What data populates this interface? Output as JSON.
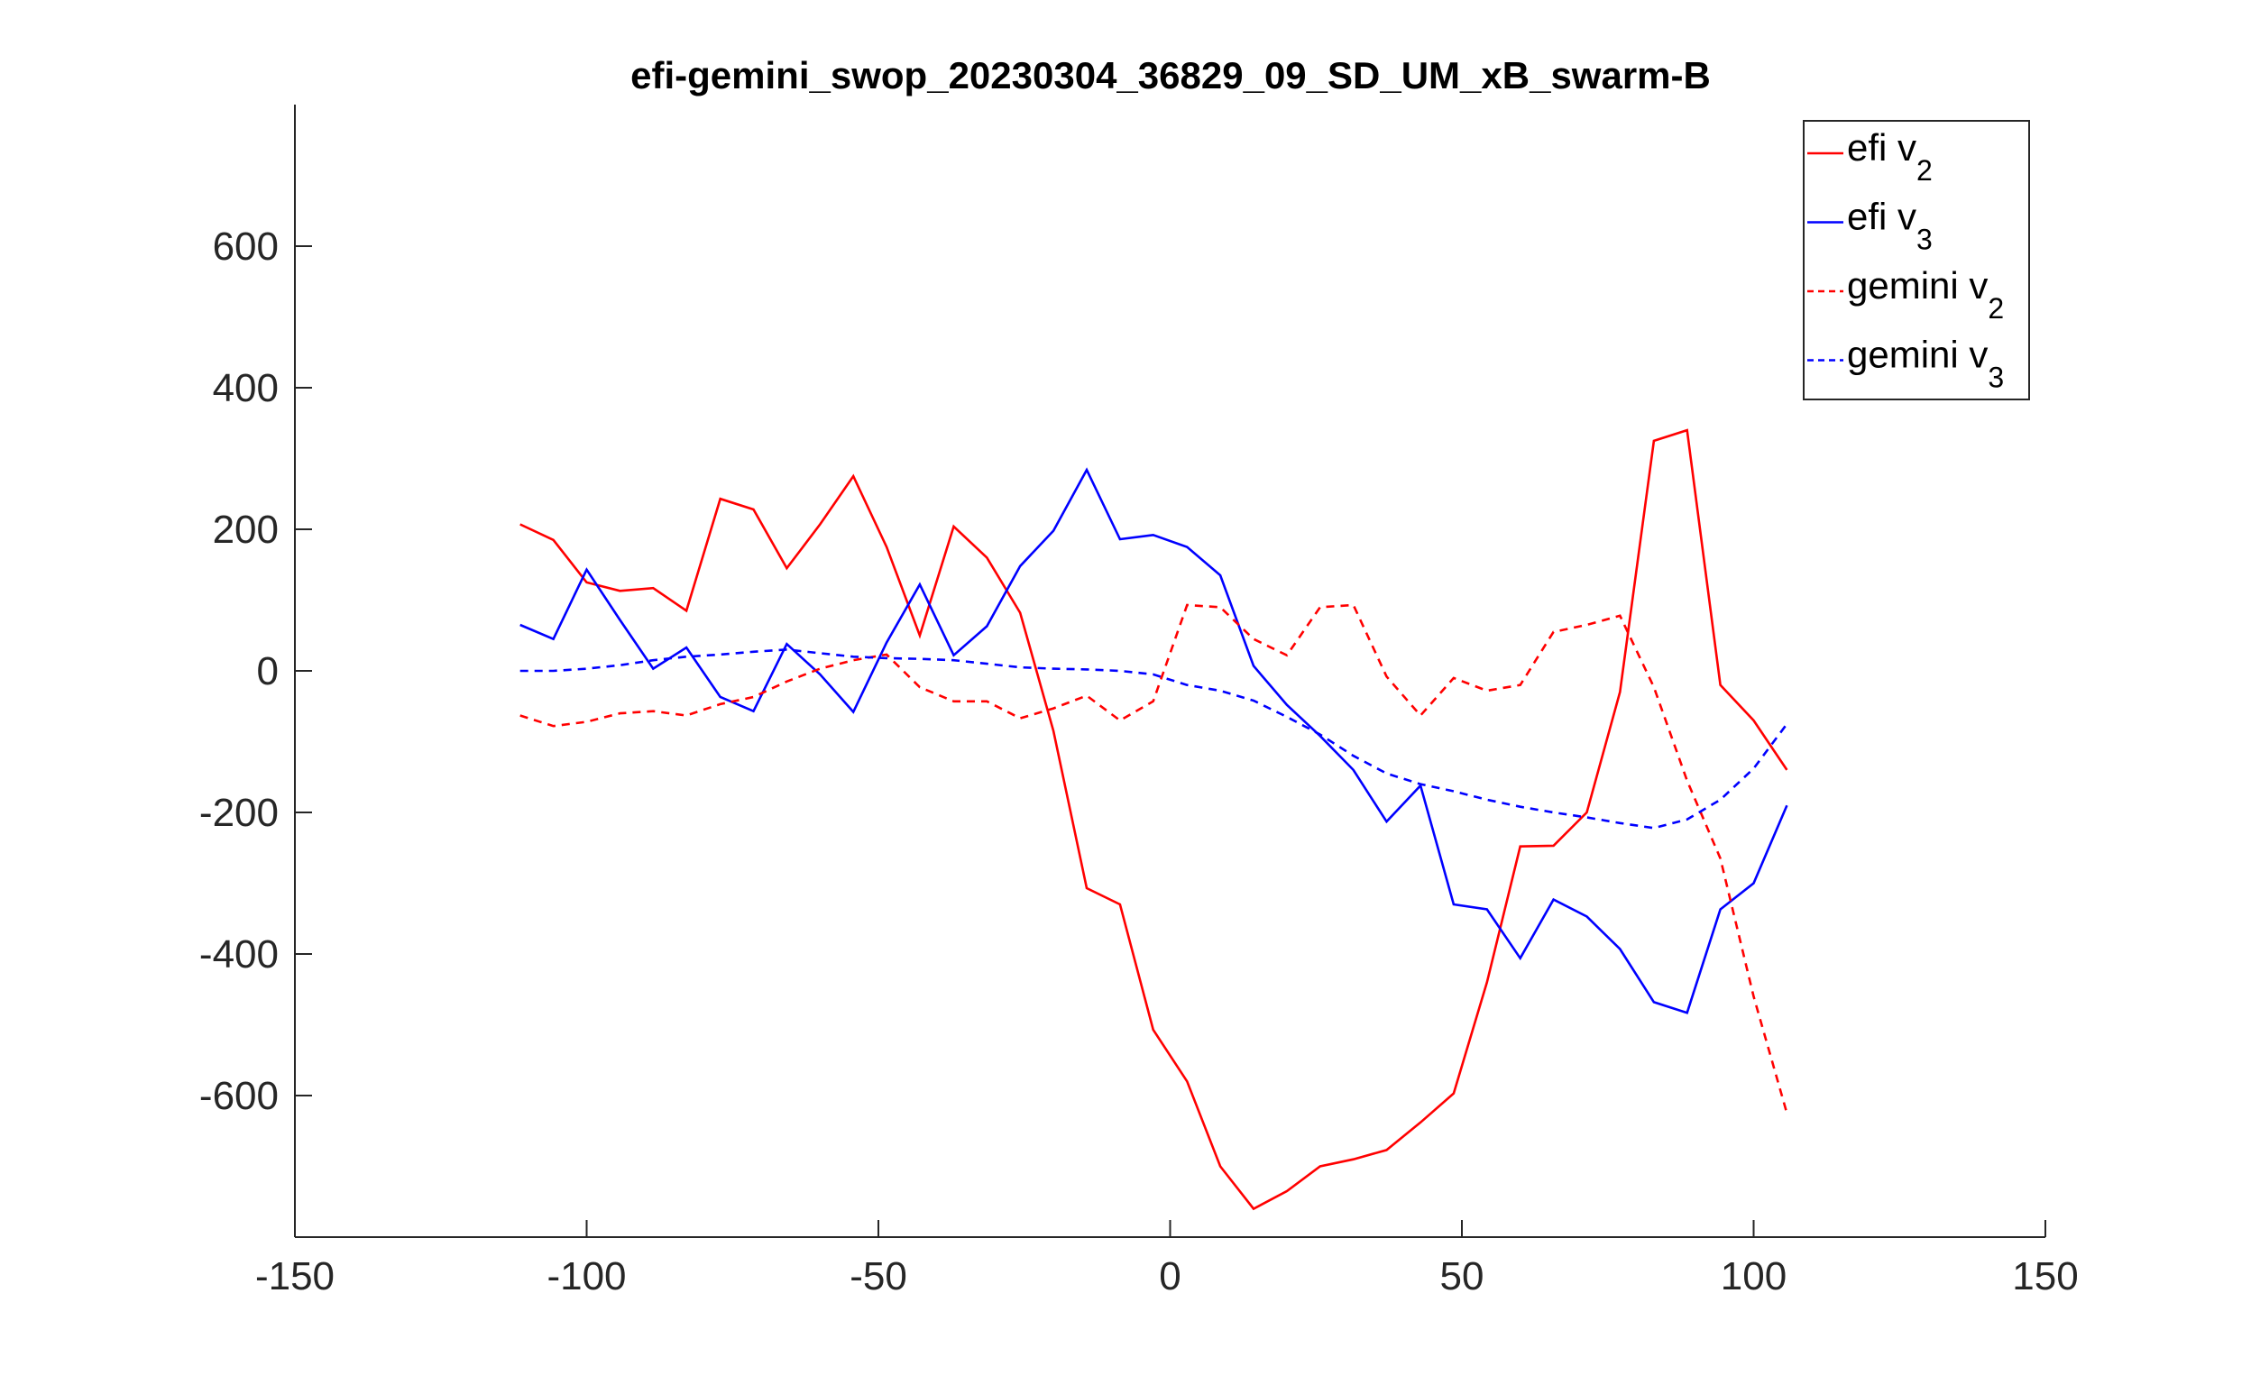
{
  "chart_data": {
    "type": "line",
    "title": "efi-gemini_swop_20230304_36829_09_SD_UM_xB_swarm-B",
    "xlabel": "",
    "ylabel": "",
    "xlim": [
      -150,
      150
    ],
    "ylim": [
      -800,
      800
    ],
    "x_ticks": [
      -150,
      -100,
      -50,
      0,
      50,
      100,
      150
    ],
    "y_ticks": [
      -600,
      -400,
      -200,
      0,
      200,
      400,
      600
    ],
    "x_tick_labels": [
      "-150",
      "-100",
      "-50",
      "0",
      "50",
      "100",
      "150"
    ],
    "y_tick_labels": [
      "-600",
      "-400",
      "-200",
      "0",
      "200",
      "400",
      "600"
    ],
    "grid": false,
    "legend_position": "top-right",
    "series": [
      {
        "name": "efi v",
        "subscript": "2",
        "color": "#ff0000",
        "style": "solid",
        "x": [
          -111.4,
          -105.7,
          -100.0,
          -94.3,
          -88.6,
          -82.9,
          -77.1,
          -71.4,
          -65.7,
          -60.0,
          -54.3,
          -48.6,
          -42.9,
          -37.1,
          -31.4,
          -25.7,
          -20.0,
          -14.3,
          -8.6,
          -2.9,
          2.9,
          8.6,
          14.3,
          20.0,
          25.7,
          31.4,
          37.1,
          42.9,
          48.6,
          54.3,
          60.0,
          65.7,
          71.4,
          77.1,
          82.9,
          88.6,
          94.3,
          100.0,
          105.7
        ],
        "values": [
          207,
          185,
          125,
          113,
          117,
          85,
          243,
          228,
          145,
          207,
          275,
          175,
          50,
          204,
          160,
          82,
          -85,
          -307,
          -330,
          -507,
          -580,
          -700,
          -760,
          -735,
          -700,
          -690,
          -677,
          -638,
          -597,
          -440,
          -248,
          -247,
          -200,
          -30,
          325,
          340,
          -20,
          -70,
          -140
        ]
      },
      {
        "name": "efi v",
        "subscript": "3",
        "color": "#0000ff",
        "style": "solid",
        "x": [
          -111.4,
          -105.7,
          -100.0,
          -94.3,
          -88.6,
          -82.9,
          -77.1,
          -71.4,
          -65.7,
          -60.0,
          -54.3,
          -48.6,
          -42.9,
          -37.1,
          -31.4,
          -25.7,
          -20.0,
          -14.3,
          -8.6,
          -2.9,
          2.9,
          8.6,
          14.3,
          20.0,
          25.7,
          31.4,
          37.1,
          42.9,
          48.6,
          54.3,
          60.0,
          65.7,
          71.4,
          77.1,
          82.9,
          88.6,
          94.3,
          100.0,
          105.7
        ],
        "values": [
          65,
          45,
          143,
          72,
          3,
          33,
          -37,
          -57,
          38,
          -5,
          -58,
          40,
          122,
          22,
          63,
          148,
          198,
          284,
          186,
          192,
          175,
          135,
          7,
          -48,
          -92,
          -140,
          -213,
          -162,
          -330,
          -337,
          -406,
          -323,
          -347,
          -393,
          -468,
          -483,
          -337,
          -300,
          -190
        ]
      },
      {
        "name": "gemini v",
        "subscript": "2",
        "color": "#ff0000",
        "style": "dashed",
        "x": [
          -111.4,
          -105.7,
          -100.0,
          -94.3,
          -88.6,
          -82.9,
          -77.1,
          -71.4,
          -65.7,
          -60.0,
          -54.3,
          -48.6,
          -42.9,
          -37.1,
          -31.4,
          -25.7,
          -20.0,
          -14.3,
          -8.6,
          -2.9,
          2.9,
          8.6,
          14.3,
          20.0,
          25.7,
          31.4,
          37.1,
          42.9,
          48.6,
          54.3,
          60.0,
          65.7,
          71.4,
          77.1,
          82.9,
          88.6,
          94.3,
          100.0,
          105.7
        ],
        "values": [
          -63,
          -78,
          -72,
          -60,
          -57,
          -63,
          -47,
          -37,
          -15,
          3,
          15,
          23,
          -23,
          -43,
          -43,
          -67,
          -53,
          -35,
          -70,
          -43,
          93,
          90,
          45,
          22,
          90,
          93,
          -8,
          -63,
          -10,
          -28,
          -20,
          55,
          65,
          78,
          -23,
          -155,
          -265,
          -460,
          -625
        ]
      },
      {
        "name": "gemini v",
        "subscript": "3",
        "color": "#0000ff",
        "style": "dashed",
        "x": [
          -111.4,
          -105.7,
          -100.0,
          -94.3,
          -88.6,
          -82.9,
          -77.1,
          -71.4,
          -65.7,
          -60.0,
          -54.3,
          -48.6,
          -42.9,
          -37.1,
          -31.4,
          -25.7,
          -20.0,
          -14.3,
          -8.6,
          -2.9,
          2.9,
          8.6,
          14.3,
          20.0,
          25.7,
          31.4,
          37.1,
          42.9,
          48.6,
          54.3,
          60.0,
          65.7,
          71.4,
          77.1,
          82.9,
          88.6,
          94.3,
          100.0,
          105.7
        ],
        "values": [
          0,
          0,
          3,
          8,
          15,
          20,
          23,
          27,
          30,
          25,
          20,
          18,
          17,
          15,
          10,
          5,
          3,
          2,
          0,
          -5,
          -20,
          -28,
          -42,
          -65,
          -90,
          -120,
          -145,
          -160,
          -170,
          -182,
          -192,
          -200,
          -207,
          -215,
          -222,
          -210,
          -182,
          -138,
          -75
        ]
      }
    ]
  }
}
